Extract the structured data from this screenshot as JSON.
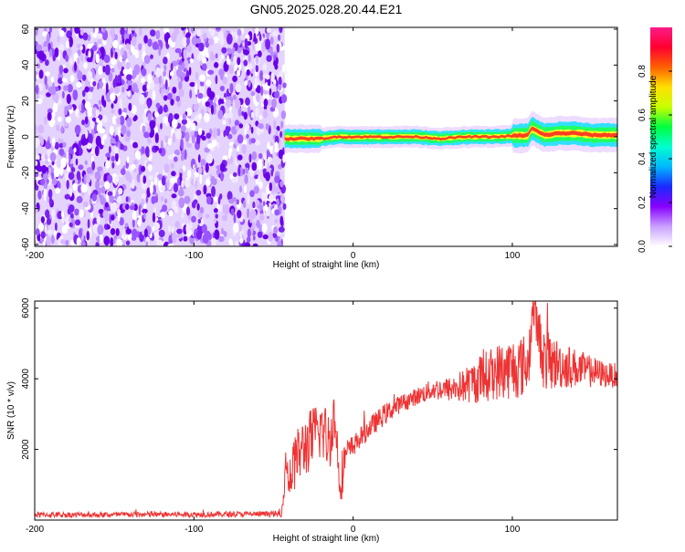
{
  "title": "GN05.2025.028.20.44.E21",
  "chart_data": [
    {
      "type": "heatmap",
      "xlabel": "Height of straight line (km)",
      "ylabel": "Frequency (Hz)",
      "xlim": [
        -200,
        166
      ],
      "ylim": [
        -61,
        61
      ],
      "xticks": [
        "-200",
        "-100",
        "0",
        "100"
      ],
      "yticks": [
        "60",
        "40",
        "20",
        "0",
        "-20",
        "-40",
        "-60"
      ],
      "noise_region_x": [
        -200,
        -43
      ],
      "signal_trace": {
        "x": [
          -43,
          -30,
          -20,
          -10,
          0,
          20,
          40,
          55,
          70,
          90,
          110,
          112,
          120,
          130,
          140,
          150,
          166
        ],
        "freq": [
          -1,
          -1,
          -1,
          0,
          0,
          0,
          0,
          -1,
          0,
          0,
          1,
          5,
          1,
          2,
          2,
          1,
          1
        ]
      },
      "colorbar": {
        "label": "Normalized spectral amplitude",
        "range": [
          0,
          1
        ],
        "ticks": [
          "0.0",
          "0.2",
          "0.4",
          "0.6",
          "0.8"
        ],
        "colors": [
          "#ffffff",
          "#c9a0ff",
          "#8800ff",
          "#1a2aff",
          "#00b8ff",
          "#00ffd0",
          "#00ff40",
          "#c8ff00",
          "#ffe000",
          "#ff6000",
          "#ff0030",
          "#ff1a88"
        ]
      },
      "grid": false
    },
    {
      "type": "line",
      "xlabel": "Height of straight line (km)",
      "ylabel": "SNR (10 * v/v)",
      "xlim": [
        -200,
        166
      ],
      "ylim": [
        0,
        6200
      ],
      "xticks": [
        "-200",
        "-100",
        "0",
        "100"
      ],
      "yticks": [
        "6000",
        "4000",
        "2000"
      ],
      "series": [
        {
          "color": "#ee3333",
          "x": [
            -200,
            -150,
            -100,
            -60,
            -45,
            -42,
            -40,
            -35,
            -30,
            -20,
            -15,
            -12,
            -8,
            -5,
            0,
            10,
            20,
            30,
            40,
            50,
            60,
            70,
            80,
            90,
            100,
            110,
            113,
            120,
            130,
            140,
            150,
            160,
            166
          ],
          "y": [
            150,
            150,
            160,
            170,
            170,
            1500,
            1200,
            1800,
            2100,
            2600,
            2200,
            3000,
            1100,
            1800,
            2100,
            2600,
            3000,
            3300,
            3500,
            3700,
            3700,
            3800,
            4000,
            4200,
            4300,
            4400,
            6100,
            4500,
            4400,
            4300,
            4200,
            4100,
            4100
          ],
          "noise_amp": [
            80,
            80,
            80,
            80,
            80,
            400,
            700,
            800,
            900,
            900,
            900,
            700,
            800,
            500,
            300,
            300,
            300,
            250,
            250,
            300,
            350,
            500,
            700,
            800,
            900,
            900,
            600,
            900,
            700,
            550,
            450,
            350,
            350
          ]
        }
      ],
      "grid": false
    }
  ]
}
